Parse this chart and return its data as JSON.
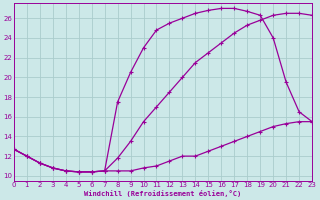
{
  "background_color": "#cce8e8",
  "grid_color": "#aacccc",
  "line_color": "#990099",
  "xlabel": "Windchill (Refroidissement éolien,°C)",
  "xlim": [
    0,
    23
  ],
  "ylim": [
    9.5,
    27.5
  ],
  "yticks": [
    10,
    12,
    14,
    16,
    18,
    20,
    22,
    24,
    26
  ],
  "xticks": [
    0,
    1,
    2,
    3,
    4,
    5,
    6,
    7,
    8,
    9,
    10,
    11,
    12,
    13,
    14,
    15,
    16,
    17,
    18,
    19,
    20,
    21,
    22,
    23
  ],
  "curve1_x": [
    0,
    1,
    2,
    3,
    4,
    5,
    6,
    7,
    8,
    9,
    10,
    11,
    12,
    13,
    14,
    15,
    16,
    17,
    18,
    19,
    20,
    21,
    22,
    23
  ],
  "curve1_y": [
    12.7,
    12.0,
    11.3,
    10.8,
    10.5,
    10.4,
    10.4,
    10.5,
    10.5,
    10.5,
    10.8,
    11.0,
    11.5,
    12.0,
    12.0,
    12.5,
    13.0,
    13.5,
    14.0,
    14.5,
    15.0,
    15.3,
    15.5,
    15.5
  ],
  "curve2_x": [
    0,
    1,
    2,
    3,
    4,
    5,
    6,
    7,
    8,
    9,
    10,
    11,
    12,
    13,
    14,
    15,
    16,
    17,
    18,
    19,
    20,
    21,
    22,
    23
  ],
  "curve2_y": [
    12.7,
    12.0,
    11.3,
    10.8,
    10.5,
    10.4,
    10.4,
    10.5,
    17.5,
    20.5,
    23.0,
    24.8,
    25.5,
    26.0,
    26.5,
    26.8,
    27.0,
    27.0,
    26.7,
    26.3,
    24.0,
    19.5,
    16.5,
    15.5
  ],
  "curve3_x": [
    0,
    1,
    2,
    3,
    4,
    5,
    6,
    7,
    8,
    9,
    10,
    11,
    12,
    13,
    14,
    15,
    16,
    17,
    18,
    19,
    20,
    21,
    22,
    23
  ],
  "curve3_y": [
    12.7,
    12.0,
    11.3,
    10.8,
    10.5,
    10.4,
    10.4,
    10.5,
    11.8,
    13.5,
    15.5,
    17.0,
    18.5,
    20.0,
    21.5,
    22.5,
    23.5,
    24.5,
    25.3,
    25.8,
    26.3,
    26.5,
    26.5,
    26.3
  ]
}
